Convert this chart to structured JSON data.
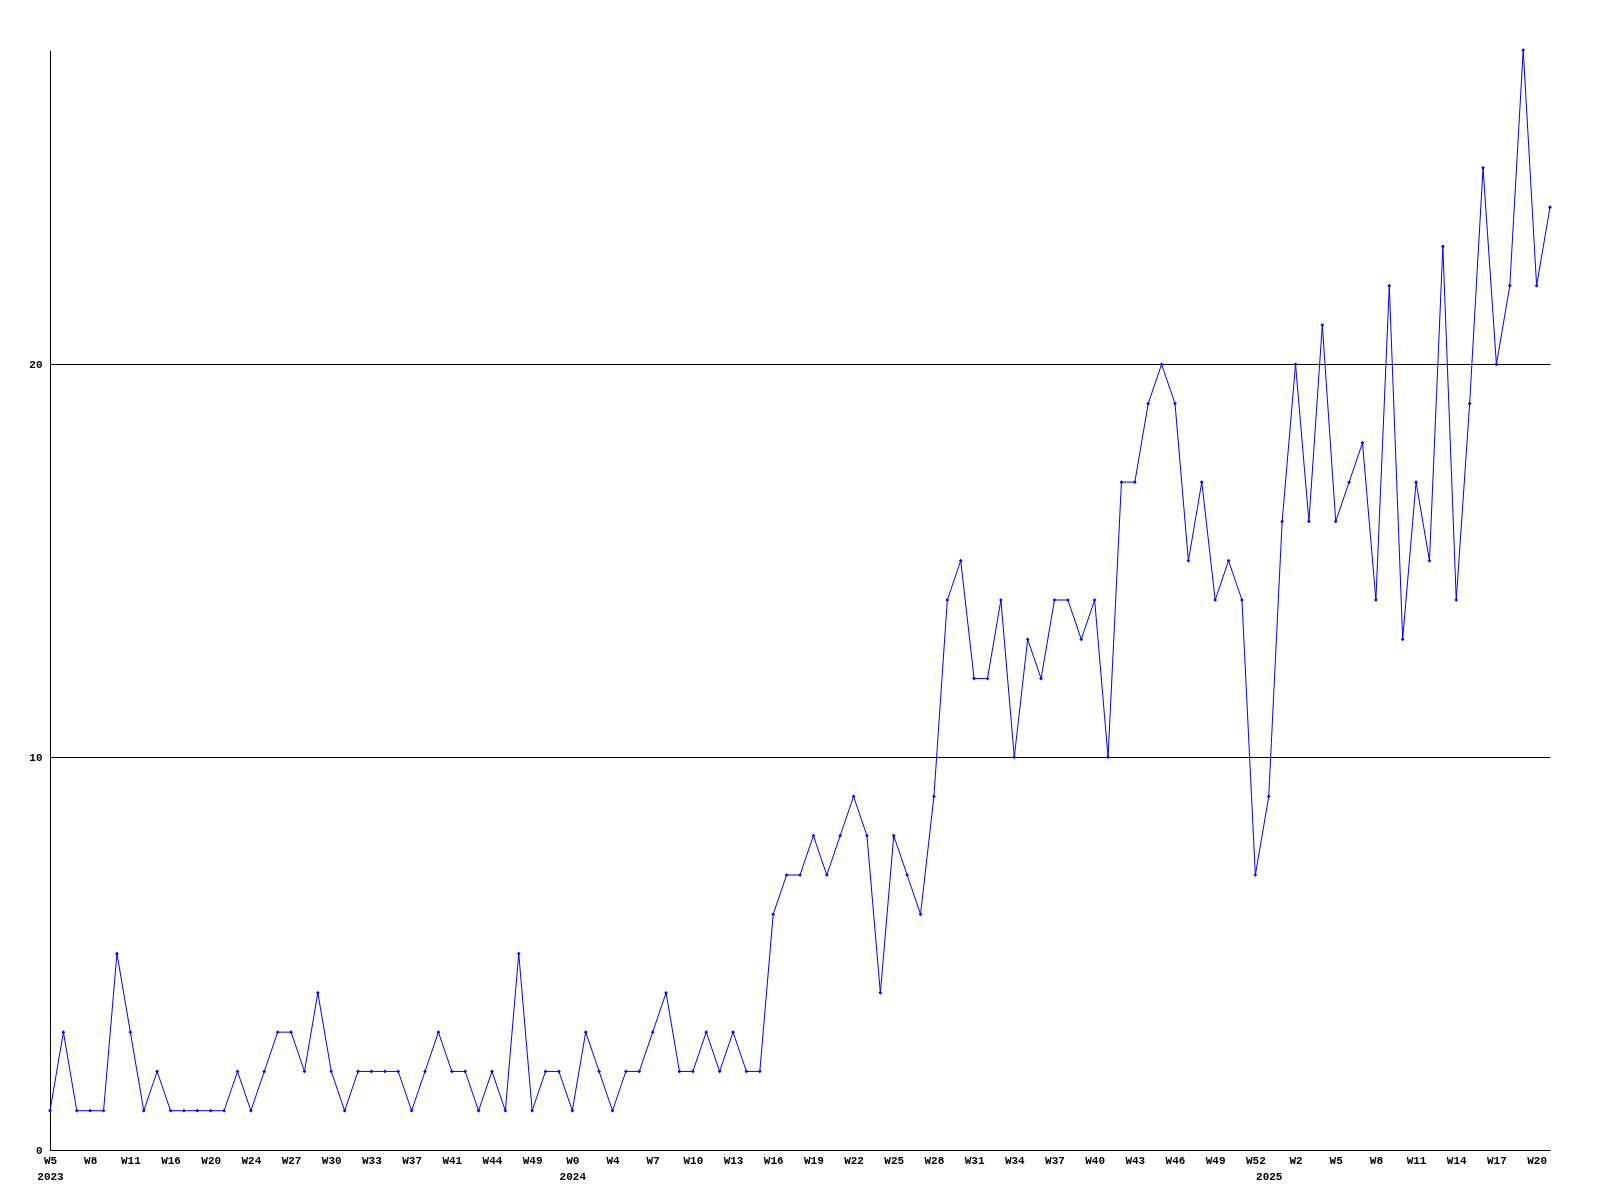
{
  "chart_data": {
    "type": "line",
    "categories": [
      "W5\n2023",
      null,
      null,
      "W8",
      null,
      null,
      "W11",
      null,
      null,
      "W16",
      null,
      null,
      "W20",
      null,
      null,
      "W24",
      null,
      null,
      "W27",
      null,
      null,
      "W30",
      null,
      null,
      "W33",
      null,
      null,
      "W37",
      null,
      null,
      "W41",
      null,
      null,
      "W44",
      null,
      null,
      "W49",
      null,
      null,
      "W0\n2024",
      null,
      null,
      "W4",
      null,
      null,
      "W7",
      null,
      null,
      "W10",
      null,
      null,
      "W13",
      null,
      null,
      "W16",
      null,
      null,
      "W19",
      null,
      null,
      "W22",
      null,
      null,
      "W25",
      null,
      null,
      "W28",
      null,
      null,
      "W31",
      null,
      null,
      "W34",
      null,
      null,
      "W37",
      null,
      null,
      "W40",
      null,
      null,
      "W43",
      null,
      null,
      "W46",
      null,
      null,
      "W49",
      null,
      null,
      "W52",
      "\n2025",
      null,
      "W2",
      null,
      null,
      "W5",
      null,
      null,
      "W8",
      null,
      null,
      "W11",
      null,
      null,
      "W14",
      null,
      null,
      "W17",
      null,
      null,
      "W20",
      null
    ],
    "series": [
      {
        "color": "#0000ff",
        "values": [
          1,
          3,
          1,
          1,
          1,
          5,
          3,
          1,
          2,
          1,
          1,
          1,
          1,
          1,
          2,
          1,
          2,
          3,
          3,
          2,
          4,
          2,
          1,
          2,
          2,
          2,
          2,
          1,
          2,
          3,
          2,
          2,
          1,
          2,
          1,
          5,
          1,
          2,
          2,
          1,
          3,
          2,
          1,
          2,
          2,
          3,
          4,
          2,
          2,
          3,
          2,
          3,
          2,
          2,
          6,
          7,
          7,
          8,
          7,
          8,
          9,
          8,
          4,
          8,
          7,
          6,
          9,
          14,
          15,
          12,
          12,
          14,
          10,
          13,
          12,
          14,
          14,
          13,
          14,
          10,
          17,
          17,
          19,
          20,
          19,
          15,
          17,
          14,
          15,
          14,
          7,
          9,
          16,
          20,
          16,
          21,
          16,
          17,
          18,
          14,
          22,
          13,
          17,
          15,
          23,
          14,
          19,
          25,
          20,
          22,
          28,
          22,
          24
        ]
      }
    ],
    "ylim": [
      0,
      28
    ],
    "yticks": [
      0,
      10,
      20
    ],
    "grid": "y",
    "marker": "diamond",
    "line_style": "solid"
  }
}
